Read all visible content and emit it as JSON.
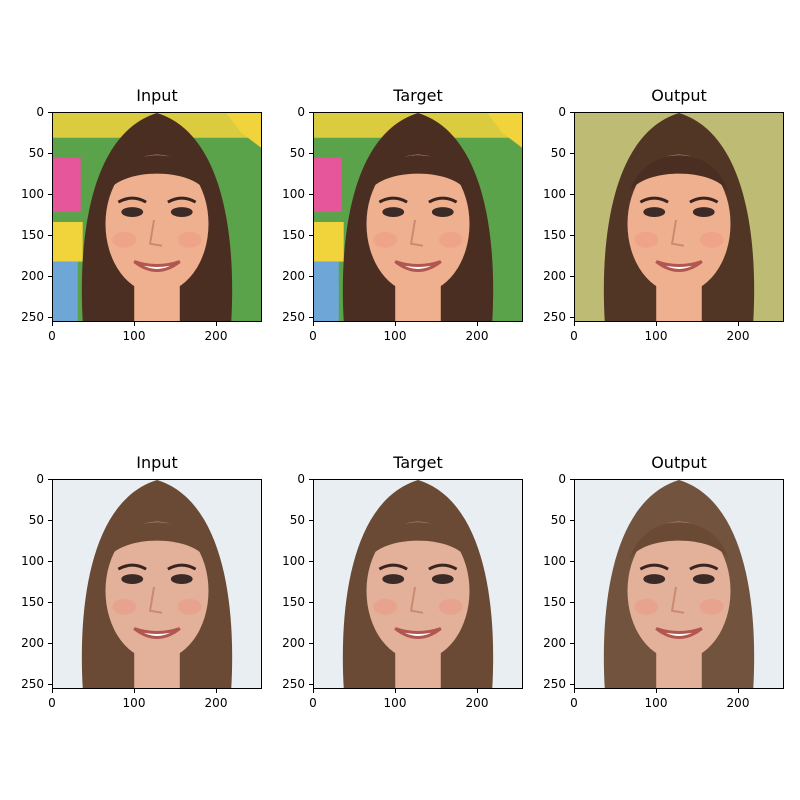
{
  "figure": {
    "rows": [
      {
        "panels": [
          {
            "title": "Input",
            "scene": "colorful",
            "style": "photo"
          },
          {
            "title": "Target",
            "scene": "colorful",
            "style": "photo"
          },
          {
            "title": "Output",
            "scene": "greenish",
            "style": "smooth"
          }
        ]
      },
      {
        "panels": [
          {
            "title": "Input",
            "scene": "white",
            "style": "photo"
          },
          {
            "title": "Target",
            "scene": "white",
            "style": "photo"
          },
          {
            "title": "Output",
            "scene": "white",
            "style": "smooth"
          }
        ]
      }
    ],
    "y_ticks": [
      "0",
      "50",
      "100",
      "150",
      "200",
      "250"
    ],
    "x_ticks": [
      "0",
      "100",
      "200"
    ],
    "y_tick_values": [
      0,
      50,
      100,
      150,
      200,
      250
    ],
    "x_tick_values": [
      0,
      100,
      200
    ],
    "image_extent": 256
  },
  "colors": {
    "hair_row1": "#4b2e22",
    "hair_row2": "#6a4a34",
    "skin_row1": "#efb08f",
    "skin_row2": "#e3b09a",
    "bg_green": "#5aa34a",
    "bg_yellow": "#f1d33c",
    "bg_pink": "#e5569b",
    "bg_blue": "#6ea6d8",
    "bg_white": "#e9eef2",
    "bg_greenish": "#c9c17a"
  }
}
